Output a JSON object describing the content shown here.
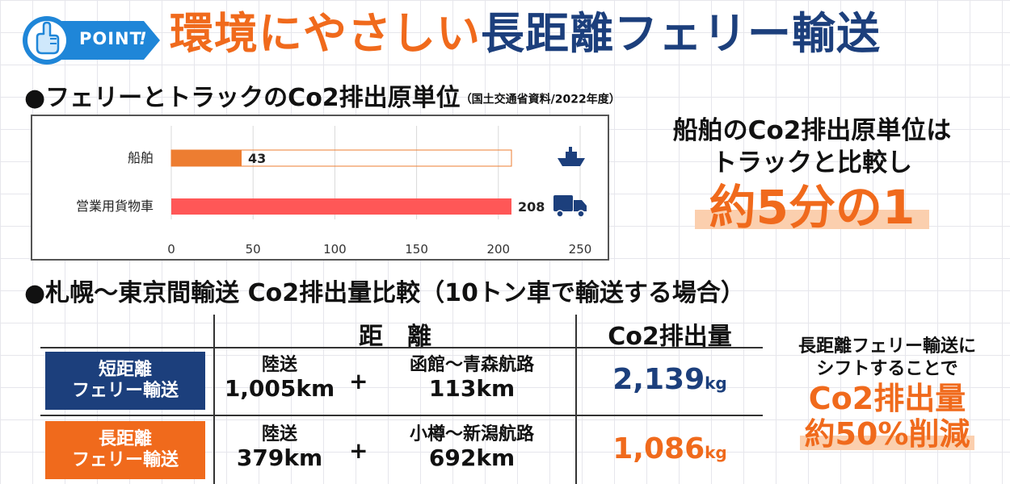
{
  "badge": {
    "text": "POINT"
  },
  "title": {
    "part1": "環境にやさしい",
    "part2": "長距離フェリー輸送"
  },
  "section1": {
    "heading": "●フェリーとトラックのCo2排出原単位",
    "source": "（国土交通省資料/2022年度）"
  },
  "chart_data": {
    "type": "bar",
    "orientation": "horizontal",
    "categories": [
      "船舶",
      "営業用貨物車"
    ],
    "values": [
      43,
      208
    ],
    "xlim": [
      0,
      250
    ],
    "x_ticks": [
      "0",
      "50",
      "100",
      "150",
      "200",
      "250"
    ],
    "grid": true,
    "colors": {
      "ship": "#ed7d31",
      "truck": "#ff5757"
    }
  },
  "blurb1": {
    "line1": "船舶のCo2排出原単位は",
    "line2": "トラックと比較し",
    "big": "約5分の1"
  },
  "section2": {
    "heading": "●札幌～東京間輸送 Co2排出量比較（10トン車で輸送する場合）"
  },
  "table": {
    "col_distance": "距　離",
    "col_emission": "Co2排出量",
    "rows": [
      {
        "label_line1": "短距離",
        "label_line2": "フェリー輸送",
        "color": "#1c3f7c",
        "land_label": "陸送",
        "land_distance": "1,005km",
        "plus": "+",
        "sea_label": "函館～青森航路",
        "sea_distance": "113km",
        "emission": "2,139",
        "unit": "kg",
        "emission_color": "#1c3f7c"
      },
      {
        "label_line1": "長距離",
        "label_line2": "フェリー輸送",
        "color": "#f06a1c",
        "land_label": "陸送",
        "land_distance": "379km",
        "plus": "+",
        "sea_label": "小樽～新潟航路",
        "sea_distance": "692km",
        "emission": "1,086",
        "unit": "kg",
        "emission_color": "#f06a1c"
      }
    ]
  },
  "blurb2": {
    "line1": "長距離フェリー輸送に",
    "line2": "シフトすることで",
    "line3": "Co2排出量",
    "line4": "約50%削減"
  },
  "icons": {
    "ship": "ship-icon",
    "truck": "truck-icon",
    "hand": "pointing-hand-icon"
  }
}
